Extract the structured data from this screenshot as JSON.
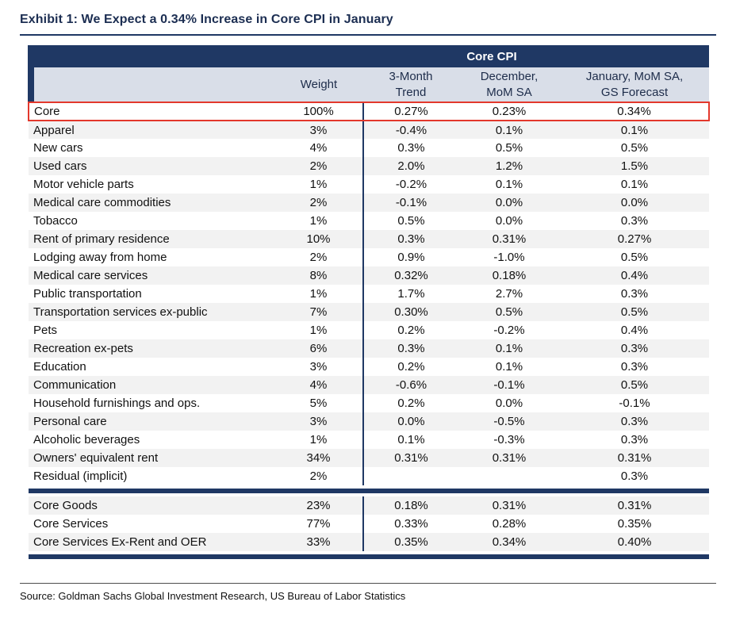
{
  "exhibit": {
    "title": "Exhibit 1: We Expect a 0.34% Increase in Core CPI in January",
    "source": "Source: Goldman Sachs Global Investment Research, US Bureau of Labor Statistics"
  },
  "colors": {
    "navy_header": "#1F3864",
    "header_row_bg": "#D9DEE8",
    "highlight_border": "#E3382C",
    "alt_row_bg": "#F2F2F2"
  },
  "chart_data": {
    "type": "table",
    "title": "Core CPI components: weights and month-over-month changes",
    "group_header": "Core CPI",
    "columns": [
      {
        "key": "component",
        "label": ""
      },
      {
        "key": "weight",
        "label": "Weight"
      },
      {
        "key": "trend_3m",
        "label": "3-Month\nTrend"
      },
      {
        "key": "december",
        "label": "December,\nMoM SA"
      },
      {
        "key": "january",
        "label": "January, MoM SA,\nGS Forecast"
      }
    ],
    "rows": [
      {
        "component": "Core",
        "weight": "100%",
        "trend_3m": "0.27%",
        "december": "0.23%",
        "january": "0.34%",
        "highlight": true
      },
      {
        "component": "Apparel",
        "weight": "3%",
        "trend_3m": "-0.4%",
        "december": "0.1%",
        "january": "0.1%"
      },
      {
        "component": "New cars",
        "weight": "4%",
        "trend_3m": "0.3%",
        "december": "0.5%",
        "january": "0.5%"
      },
      {
        "component": "Used cars",
        "weight": "2%",
        "trend_3m": "2.0%",
        "december": "1.2%",
        "january": "1.5%"
      },
      {
        "component": "Motor vehicle parts",
        "weight": "1%",
        "trend_3m": "-0.2%",
        "december": "0.1%",
        "january": "0.1%"
      },
      {
        "component": "Medical care commodities",
        "weight": "2%",
        "trend_3m": "-0.1%",
        "december": "0.0%",
        "january": "0.0%"
      },
      {
        "component": "Tobacco",
        "weight": "1%",
        "trend_3m": "0.5%",
        "december": "0.0%",
        "january": "0.3%"
      },
      {
        "component": "Rent of primary residence",
        "weight": "10%",
        "trend_3m": "0.3%",
        "december": "0.31%",
        "january": "0.27%"
      },
      {
        "component": "Lodging away from home",
        "weight": "2%",
        "trend_3m": "0.9%",
        "december": "-1.0%",
        "january": "0.5%"
      },
      {
        "component": "Medical care services",
        "weight": "8%",
        "trend_3m": "0.32%",
        "december": "0.18%",
        "january": "0.4%"
      },
      {
        "component": "Public transportation",
        "weight": "1%",
        "trend_3m": "1.7%",
        "december": "2.7%",
        "january": "0.3%"
      },
      {
        "component": "Transportation services ex-public",
        "weight": "7%",
        "trend_3m": "0.30%",
        "december": "0.5%",
        "january": "0.5%"
      },
      {
        "component": "Pets",
        "weight": "1%",
        "trend_3m": "0.2%",
        "december": "-0.2%",
        "january": "0.4%"
      },
      {
        "component": "Recreation ex-pets",
        "weight": "6%",
        "trend_3m": "0.3%",
        "december": "0.1%",
        "january": "0.3%"
      },
      {
        "component": "Education",
        "weight": "3%",
        "trend_3m": "0.2%",
        "december": "0.1%",
        "january": "0.3%"
      },
      {
        "component": "Communication",
        "weight": "4%",
        "trend_3m": "-0.6%",
        "december": "-0.1%",
        "january": "0.5%"
      },
      {
        "component": "Household furnishings and ops.",
        "weight": "5%",
        "trend_3m": "0.2%",
        "december": "0.0%",
        "january": "-0.1%"
      },
      {
        "component": "Personal care",
        "weight": "3%",
        "trend_3m": "0.0%",
        "december": "-0.5%",
        "january": "0.3%"
      },
      {
        "component": "Alcoholic beverages",
        "weight": "1%",
        "trend_3m": "0.1%",
        "december": "-0.3%",
        "january": "0.3%"
      },
      {
        "component": "Owners' equivalent rent",
        "weight": "34%",
        "trend_3m": "0.31%",
        "december": "0.31%",
        "january": "0.31%"
      },
      {
        "component": "Residual (implicit)",
        "weight": "2%",
        "trend_3m": "",
        "december": "",
        "january": "0.3%"
      }
    ],
    "summary_rows": [
      {
        "component": "Core Goods",
        "weight": "23%",
        "trend_3m": "0.18%",
        "december": "0.31%",
        "january": "0.31%"
      },
      {
        "component": "Core Services",
        "weight": "77%",
        "trend_3m": "0.33%",
        "december": "0.28%",
        "january": "0.35%"
      },
      {
        "component": "Core Services Ex-Rent and OER",
        "weight": "33%",
        "trend_3m": "0.35%",
        "december": "0.34%",
        "january": "0.40%"
      }
    ]
  }
}
